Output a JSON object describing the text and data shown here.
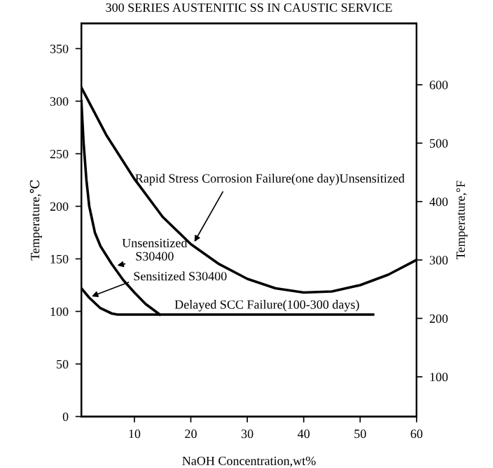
{
  "chart_data": {
    "type": "line",
    "title": "300 SERIES AUSTENITIC SS IN CAUSTIC SERVICE",
    "xlabel": "NaOH Concentration,wt%",
    "ylabel": "Temperature,℃",
    "y2label": "Temperature,°F",
    "xlim": [
      0.6,
      60
    ],
    "xticks": [
      10,
      20,
      30,
      40,
      50,
      60
    ],
    "ylim": [
      0,
      374
    ],
    "yticks": [
      0,
      50,
      100,
      150,
      200,
      250,
      300,
      350
    ],
    "y2lim": [
      32,
      705
    ],
    "y2ticks": [
      100,
      200,
      300,
      400,
      500,
      600
    ],
    "grid": false,
    "legend": false,
    "marker": "none",
    "line_style": "solid",
    "series": [
      {
        "color": "#000000",
        "x": [
          0.6,
          5,
          10,
          15,
          20,
          25,
          30,
          35,
          40,
          45,
          50,
          55,
          60
        ],
        "values": [
          313,
          268,
          226,
          190,
          164,
          145,
          131,
          122,
          118,
          119,
          125,
          135,
          149
        ]
      },
      {
        "color": "#000000",
        "x": [
          0.6,
          1,
          1.5,
          2,
          3,
          4,
          6,
          8,
          10,
          12,
          14.5
        ],
        "values": [
          300,
          260,
          225,
          200,
          175,
          162,
          145,
          130,
          118,
          107,
          97
        ]
      },
      {
        "color": "#000000",
        "x": [
          0.6,
          2,
          4,
          6,
          7,
          52.3
        ],
        "values": [
          122,
          113,
          103,
          98,
          97,
          97
        ]
      }
    ],
    "annotations": [
      {
        "text": "Rapid Stress Corrosion Failure(one day)Unsensitized",
        "x": 20.3,
        "y": 163
      },
      {
        "text": "Unsensitized\nS30400",
        "x": 6.3,
        "y": 143
      },
      {
        "text": "Sensitized S30400",
        "x": 1.8,
        "y": 113
      },
      {
        "text": "Delayed SCC Failure(100-300 days)",
        "x": 33.5,
        "y": 97
      }
    ]
  }
}
